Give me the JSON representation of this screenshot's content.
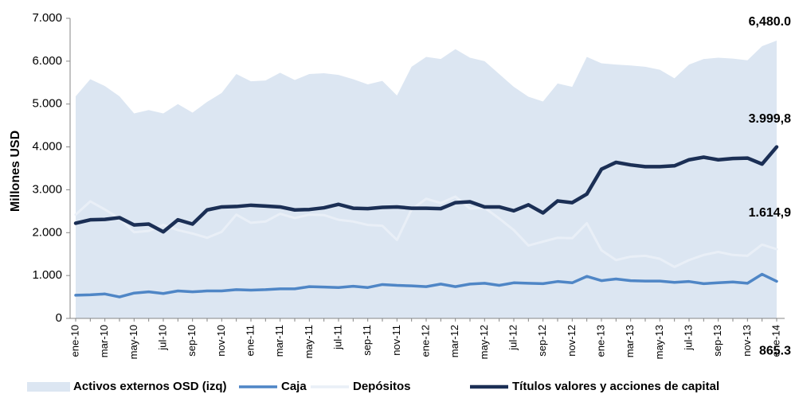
{
  "chart_data": {
    "type": "line",
    "y_label": "Millones USD",
    "categories": [
      "ene-10",
      null,
      "mar-10",
      null,
      "may-10",
      null,
      "jul-10",
      null,
      "sep-10",
      null,
      "nov-10",
      null,
      "ene-11",
      null,
      "mar-11",
      null,
      "may-11",
      null,
      "jul-11",
      null,
      "sep-11",
      null,
      "nov-11",
      null,
      "ene-12",
      null,
      "mar-12",
      null,
      "may-12",
      null,
      "jul-12",
      null,
      "sep-12",
      null,
      "nov-12",
      null,
      "ene-13",
      null,
      "mar-13",
      null,
      "may-13",
      null,
      "jul-13",
      null,
      "sep-13",
      null,
      "nov-13",
      null,
      "ene-14"
    ],
    "ylim": [
      0,
      7000
    ],
    "yticks": [
      0,
      {
        "value": 1000,
        "label": "1.000"
      },
      {
        "value": 2000,
        "label": "2.000"
      },
      {
        "value": 3000,
        "label": "3.000"
      },
      {
        "value": 4000,
        "label": "4.000"
      },
      {
        "value": 5000,
        "label": "5.000"
      },
      {
        "value": 6000,
        "label": "6.000"
      },
      {
        "value": 7000,
        "label": "7.000"
      }
    ],
    "legend": "bottom",
    "series": [
      {
        "name": "Activos externos OSD (izq)",
        "kind": "area",
        "color": "#dce6f2",
        "values": [
          5180,
          5580,
          5420,
          5180,
          4780,
          4860,
          4780,
          5000,
          4800,
          5050,
          5260,
          5700,
          5530,
          5550,
          5730,
          5560,
          5700,
          5720,
          5680,
          5580,
          5460,
          5540,
          5200,
          5870,
          6100,
          6050,
          6280,
          6080,
          6000,
          5700,
          5400,
          5170,
          5060,
          5480,
          5400,
          6100,
          5950,
          5920,
          5900,
          5870,
          5800,
          5600,
          5920,
          6050,
          6080,
          6060,
          6020,
          6350,
          6480.0
        ],
        "value_labels": [
          null,
          null,
          null,
          null,
          null,
          null,
          null,
          null,
          null,
          null,
          null,
          null,
          null,
          null,
          null,
          null,
          null,
          null,
          null,
          null,
          null,
          null,
          null,
          null,
          null,
          null,
          null,
          null,
          null,
          null,
          null,
          null,
          null,
          null,
          null,
          null,
          null,
          null,
          null,
          null,
          null,
          null,
          null,
          null,
          null,
          null,
          null,
          null,
          "6,480.0"
        ]
      },
      {
        "name": "Caja",
        "kind": "line",
        "color": "#4f86c6",
        "values": [
          540,
          550,
          570,
          500,
          590,
          620,
          580,
          640,
          620,
          640,
          640,
          670,
          660,
          670,
          690,
          690,
          740,
          730,
          720,
          750,
          720,
          790,
          770,
          760,
          740,
          800,
          740,
          800,
          820,
          770,
          830,
          820,
          810,
          860,
          830,
          980,
          880,
          920,
          880,
          870,
          870,
          840,
          860,
          810,
          830,
          850,
          820,
          1030,
          865.3
        ],
        "value_labels": [
          null,
          null,
          null,
          null,
          null,
          null,
          null,
          null,
          null,
          null,
          null,
          null,
          null,
          null,
          null,
          null,
          null,
          null,
          null,
          null,
          null,
          null,
          null,
          null,
          null,
          null,
          null,
          null,
          null,
          null,
          null,
          null,
          null,
          null,
          null,
          null,
          null,
          null,
          null,
          null,
          null,
          null,
          null,
          null,
          null,
          null,
          null,
          null,
          "865.3"
        ]
      },
      {
        "name": "Depósitos",
        "kind": "line",
        "color": "#e9eff7",
        "values": [
          2420,
          2730,
          2540,
          2330,
          2010,
          2040,
          2180,
          2060,
          1980,
          1880,
          2020,
          2420,
          2230,
          2260,
          2440,
          2340,
          2420,
          2410,
          2300,
          2260,
          2180,
          2160,
          1830,
          2540,
          2790,
          2690,
          2840,
          2560,
          2580,
          2330,
          2060,
          1700,
          1790,
          1880,
          1870,
          2220,
          1590,
          1360,
          1440,
          1460,
          1390,
          1200,
          1360,
          1480,
          1550,
          1480,
          1460,
          1720,
          1614.9
        ],
        "value_labels": [
          null,
          null,
          null,
          null,
          null,
          null,
          null,
          null,
          null,
          null,
          null,
          null,
          null,
          null,
          null,
          null,
          null,
          null,
          null,
          null,
          null,
          null,
          null,
          null,
          null,
          null,
          null,
          null,
          null,
          null,
          null,
          null,
          null,
          null,
          null,
          null,
          null,
          null,
          null,
          null,
          null,
          null,
          null,
          null,
          null,
          null,
          null,
          null,
          "1.614,9"
        ]
      },
      {
        "name": "Títulos valores y acciones de capital",
        "kind": "line",
        "color": "#1b2f55",
        "values": [
          2220,
          2300,
          2310,
          2350,
          2180,
          2200,
          2020,
          2300,
          2200,
          2530,
          2600,
          2610,
          2640,
          2620,
          2600,
          2530,
          2540,
          2580,
          2660,
          2570,
          2560,
          2590,
          2600,
          2570,
          2570,
          2560,
          2700,
          2720,
          2600,
          2600,
          2510,
          2650,
          2460,
          2740,
          2700,
          2900,
          3480,
          3640,
          3580,
          3540,
          3540,
          3560,
          3700,
          3760,
          3700,
          3730,
          3740,
          3600,
          3999.8
        ],
        "value_labels": [
          null,
          null,
          null,
          null,
          null,
          null,
          null,
          null,
          null,
          null,
          null,
          null,
          null,
          null,
          null,
          null,
          null,
          null,
          null,
          null,
          null,
          null,
          null,
          null,
          null,
          null,
          null,
          null,
          null,
          null,
          null,
          null,
          null,
          null,
          null,
          null,
          null,
          null,
          null,
          null,
          null,
          null,
          null,
          null,
          null,
          null,
          null,
          null,
          "3.999,8"
        ]
      }
    ]
  }
}
